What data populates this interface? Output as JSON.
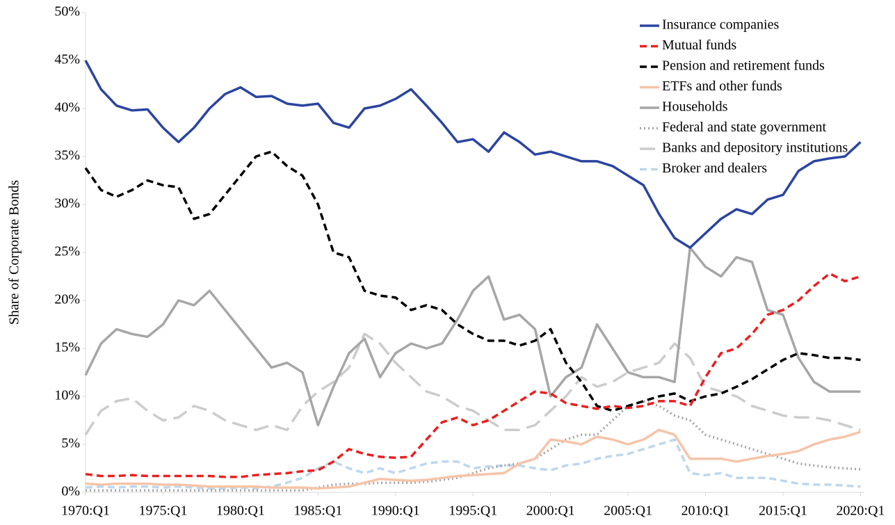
{
  "chart_data": {
    "type": "line",
    "ylabel": "Share of Corporate Bonds",
    "x": [
      1970,
      1971,
      1972,
      1973,
      1974,
      1975,
      1976,
      1977,
      1978,
      1979,
      1980,
      1981,
      1982,
      1983,
      1984,
      1985,
      1986,
      1987,
      1988,
      1989,
      1990,
      1991,
      1992,
      1993,
      1994,
      1995,
      1996,
      1997,
      1998,
      1999,
      2000,
      2001,
      2002,
      2003,
      2004,
      2005,
      2006,
      2007,
      2008,
      2009,
      2010,
      2011,
      2012,
      2013,
      2014,
      2015,
      2016,
      2017,
      2018,
      2019,
      2020
    ],
    "xlim": [
      1970,
      2020.25
    ],
    "xticks": [
      {
        "value": 1970,
        "label": "1970:Q1"
      },
      {
        "value": 1975,
        "label": "1975:Q1"
      },
      {
        "value": 1980,
        "label": "1980:Q1"
      },
      {
        "value": 1985,
        "label": "1985:Q1"
      },
      {
        "value": 1990,
        "label": "1990:Q1"
      },
      {
        "value": 1995,
        "label": "1995:Q1"
      },
      {
        "value": 2000,
        "label": "2000:Q1"
      },
      {
        "value": 2005,
        "label": "2005:Q1"
      },
      {
        "value": 2010,
        "label": "2010:Q1"
      },
      {
        "value": 2015,
        "label": "2015:Q1"
      },
      {
        "value": 2020,
        "label": "2020:Q1"
      }
    ],
    "ylim": [
      0,
      50
    ],
    "yticks": [
      {
        "value": 0,
        "label": "0%"
      },
      {
        "value": 5,
        "label": "5%"
      },
      {
        "value": 10,
        "label": "10%"
      },
      {
        "value": 15,
        "label": "15%"
      },
      {
        "value": 20,
        "label": "20%"
      },
      {
        "value": 25,
        "label": "25%"
      },
      {
        "value": 30,
        "label": "30%"
      },
      {
        "value": 35,
        "label": "35%"
      },
      {
        "value": 40,
        "label": "40%"
      },
      {
        "value": 45,
        "label": "45%"
      },
      {
        "value": 50,
        "label": "50%"
      }
    ],
    "grid": false,
    "legend": "upper right",
    "series": [
      {
        "name": "Insurance companies",
        "color": "#2a44a0",
        "dash": "solid",
        "values": [
          45,
          42,
          40.3,
          39.8,
          39.9,
          38,
          36.5,
          38,
          40,
          41.5,
          42.2,
          41.2,
          41.3,
          40.5,
          40.3,
          40.5,
          38.5,
          38,
          40,
          40.3,
          41,
          42,
          40.3,
          38.5,
          36.5,
          36.8,
          35.5,
          37.5,
          36.5,
          35.2,
          35.5,
          35,
          34.5,
          34.5,
          34,
          33,
          32,
          29,
          26.5,
          25.5,
          27,
          28.5,
          29.5,
          29,
          30.5,
          31,
          33.5,
          34.5,
          34.8,
          35,
          36.5
        ]
      },
      {
        "name": "Mutual funds",
        "color": "#e8201f",
        "dash": "dashed",
        "values": [
          1.9,
          1.7,
          1.7,
          1.8,
          1.7,
          1.7,
          1.7,
          1.7,
          1.7,
          1.6,
          1.6,
          1.8,
          1.9,
          2.0,
          2.2,
          2.3,
          3.2,
          4.5,
          4.0,
          3.7,
          3.6,
          3.7,
          5.5,
          7.3,
          7.8,
          7.0,
          7.5,
          8.5,
          9.5,
          10.5,
          10.3,
          9.3,
          9.0,
          8.7,
          9.0,
          8.8,
          9.0,
          9.5,
          9.5,
          9.0,
          12.0,
          14.5,
          15.0,
          16.5,
          18.5,
          19.0,
          20.0,
          21.5,
          22.8,
          22.0,
          22.5
        ]
      },
      {
        "name": "Pension and retirement funds",
        "color": "#000000",
        "dash": "dashed",
        "values": [
          33.8,
          31.5,
          30.8,
          31.5,
          32.5,
          32.0,
          31.8,
          28.5,
          29.0,
          31.0,
          33.0,
          35.0,
          35.5,
          34.0,
          33.0,
          30,
          25,
          24.5,
          21,
          20.5,
          20.3,
          19.0,
          19.5,
          19.0,
          17.5,
          16.5,
          15.8,
          15.8,
          15.3,
          15.8,
          17.0,
          13.5,
          11.5,
          9.0,
          8.5,
          9.0,
          9.5,
          10.0,
          10.3,
          9.5,
          10.0,
          10.3,
          11.0,
          11.8,
          12.8,
          13.8,
          14.5,
          14.3,
          14.0,
          14.0,
          13.8
        ]
      },
      {
        "name": "ETFs and other funds",
        "color": "#f5c4a8",
        "dash": "solid",
        "values": [
          0.9,
          0.8,
          0.9,
          0.9,
          0.9,
          0.8,
          0.8,
          0.7,
          0.6,
          0.6,
          0.6,
          0.6,
          0.5,
          0.5,
          0.5,
          0.4,
          0.5,
          0.6,
          1.0,
          1.4,
          1.3,
          1.2,
          1.3,
          1.5,
          1.7,
          1.8,
          1.9,
          2.0,
          3.0,
          3.5,
          5.5,
          5.3,
          5.0,
          5.8,
          5.5,
          5.0,
          5.5,
          6.5,
          6.0,
          3.5,
          3.5,
          3.5,
          3.2,
          3.5,
          3.8,
          4.0,
          4.3,
          5.0,
          5.5,
          5.8,
          6.3
        ]
      },
      {
        "name": "Households",
        "color": "#a6a6a6",
        "dash": "solid",
        "values": [
          12.2,
          15.5,
          17.0,
          16.5,
          16.2,
          17.5,
          20.0,
          19.5,
          21.0,
          19.0,
          17.0,
          15.0,
          13.0,
          13.5,
          12.5,
          7.0,
          11.0,
          14.5,
          16.0,
          12.0,
          14.5,
          15.5,
          15.0,
          15.5,
          18.0,
          21.0,
          22.5,
          18.0,
          18.5,
          17.0,
          10.0,
          12.0,
          13.0,
          17.5,
          15.0,
          12.5,
          12.0,
          12.0,
          11.5,
          25.5,
          23.5,
          22.5,
          24.5,
          24.0,
          19.0,
          18.5,
          14.0,
          11.5,
          10.5,
          10.5,
          10.5
        ]
      },
      {
        "name": "Federal and state government",
        "color": "#a6a6a6",
        "dash": "dotted",
        "values": [
          0.2,
          0.2,
          0.2,
          0.2,
          0.2,
          0.2,
          0.2,
          0.2,
          0.2,
          0.2,
          0.2,
          0.2,
          0.2,
          0.2,
          0.2,
          0.5,
          0.8,
          0.9,
          0.9,
          1.0,
          1.0,
          1.0,
          1.1,
          1.3,
          1.5,
          2.0,
          2.5,
          2.8,
          3.0,
          3.5,
          4.5,
          5.5,
          6.0,
          6.0,
          7.5,
          9.0,
          9.5,
          9.0,
          8.0,
          7.5,
          6.0,
          5.5,
          5.0,
          4.5,
          4.0,
          3.5,
          3.0,
          2.8,
          2.6,
          2.5,
          2.4
        ]
      },
      {
        "name": "Banks and depository institutions",
        "color": "#cccccc",
        "dash": "long-dash",
        "values": [
          6.0,
          8.5,
          9.5,
          9.8,
          8.5,
          7.5,
          7.8,
          9.0,
          8.5,
          7.5,
          7.0,
          6.5,
          7.0,
          6.5,
          9.0,
          10.5,
          11.5,
          13.0,
          16.5,
          15.5,
          13.5,
          12.0,
          10.5,
          10.0,
          9.0,
          8.5,
          7.5,
          6.5,
          6.5,
          7.0,
          8.5,
          10.0,
          12.0,
          11.0,
          11.5,
          12.5,
          13.0,
          13.5,
          15.5,
          14.0,
          11.0,
          10.5,
          10.0,
          9.0,
          8.5,
          8.0,
          7.8,
          7.8,
          7.5,
          7.0,
          6.5
        ]
      },
      {
        "name": "Broker and dealers",
        "color": "#bdd7ee",
        "dash": "dashed",
        "values": [
          0.5,
          0.6,
          0.5,
          0.6,
          0.6,
          0.5,
          0.6,
          0.5,
          0.4,
          0.4,
          0.5,
          0.4,
          0.6,
          1.0,
          1.5,
          2.5,
          3.2,
          2.5,
          2.0,
          2.5,
          2.0,
          2.5,
          3.0,
          3.2,
          3.2,
          2.5,
          2.7,
          2.8,
          2.8,
          2.5,
          2.3,
          2.8,
          3.0,
          3.5,
          3.8,
          4.0,
          4.5,
          5.0,
          5.5,
          2.0,
          1.8,
          2.0,
          1.5,
          1.5,
          1.5,
          1.2,
          0.9,
          0.8,
          0.8,
          0.7,
          0.6
        ]
      }
    ]
  }
}
